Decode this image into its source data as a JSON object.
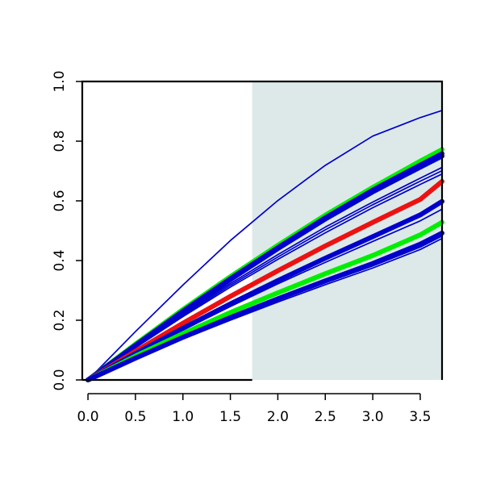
{
  "chart_data": {
    "type": "line",
    "title": "",
    "xlabel": "",
    "ylabel": "",
    "xlim": [
      -0.06,
      3.73
    ],
    "ylim": [
      0.0,
      1.0
    ],
    "x_ticks": [
      "0.0",
      "0.5",
      "1.0",
      "1.5",
      "2.0",
      "2.5",
      "3.0",
      "3.5"
    ],
    "y_ticks": [
      "0.0",
      "0.2",
      "0.4",
      "0.6",
      "0.8",
      "1.0"
    ],
    "shaded_region": {
      "x_start": 1.73,
      "x_end": 3.73,
      "color": "#dde9e9"
    },
    "grid": false,
    "legend": "none",
    "colors": {
      "blue": "#0000cc",
      "green": "#00ee00",
      "red": "#ee1111"
    },
    "series": [
      {
        "color": "blue",
        "weight": "thin",
        "points": [
          [
            0,
            0
          ],
          [
            0.5,
            0.162
          ],
          [
            1.0,
            0.318
          ],
          [
            1.5,
            0.467
          ],
          [
            2.0,
            0.601
          ],
          [
            2.5,
            0.719
          ],
          [
            3.0,
            0.817
          ],
          [
            3.5,
            0.879
          ],
          [
            3.73,
            0.903
          ]
        ]
      },
      {
        "color": "green",
        "weight": "thick",
        "points": [
          [
            0,
            0
          ],
          [
            0.5,
            0.12
          ],
          [
            1.0,
            0.236
          ],
          [
            1.5,
            0.346
          ],
          [
            2.0,
            0.451
          ],
          [
            2.5,
            0.552
          ],
          [
            3.0,
            0.645
          ],
          [
            3.5,
            0.733
          ],
          [
            3.73,
            0.772
          ]
        ]
      },
      {
        "color": "blue",
        "weight": "thick",
        "points": [
          [
            0,
            0
          ],
          [
            0.5,
            0.116
          ],
          [
            1.0,
            0.23
          ],
          [
            1.5,
            0.339
          ],
          [
            2.0,
            0.443
          ],
          [
            2.5,
            0.543
          ],
          [
            3.0,
            0.636
          ],
          [
            3.5,
            0.72
          ],
          [
            3.73,
            0.758
          ]
        ]
      },
      {
        "color": "blue",
        "weight": "thick",
        "points": [
          [
            0,
            0
          ],
          [
            0.5,
            0.115
          ],
          [
            1.0,
            0.228
          ],
          [
            1.5,
            0.336
          ],
          [
            2.0,
            0.44
          ],
          [
            2.5,
            0.539
          ],
          [
            3.0,
            0.63
          ],
          [
            3.5,
            0.713
          ],
          [
            3.73,
            0.75
          ]
        ]
      },
      {
        "color": "blue",
        "weight": "thin",
        "points": [
          [
            0,
            0
          ],
          [
            0.5,
            0.112
          ],
          [
            1.0,
            0.22
          ],
          [
            1.5,
            0.323
          ],
          [
            2.0,
            0.42
          ],
          [
            2.5,
            0.512
          ],
          [
            3.0,
            0.596
          ],
          [
            3.5,
            0.676
          ],
          [
            3.73,
            0.712
          ]
        ]
      },
      {
        "color": "blue",
        "weight": "thin",
        "points": [
          [
            0,
            0
          ],
          [
            0.5,
            0.11
          ],
          [
            1.0,
            0.216
          ],
          [
            1.5,
            0.317
          ],
          [
            2.0,
            0.412
          ],
          [
            2.5,
            0.503
          ],
          [
            3.0,
            0.587
          ],
          [
            3.5,
            0.666
          ],
          [
            3.73,
            0.701
          ]
        ]
      },
      {
        "color": "blue",
        "weight": "thin",
        "points": [
          [
            0,
            0
          ],
          [
            0.5,
            0.108
          ],
          [
            1.0,
            0.212
          ],
          [
            1.5,
            0.311
          ],
          [
            2.0,
            0.404
          ],
          [
            2.5,
            0.493
          ],
          [
            3.0,
            0.577
          ],
          [
            3.5,
            0.655
          ],
          [
            3.73,
            0.69
          ]
        ]
      },
      {
        "color": "red",
        "weight": "thick",
        "points": [
          [
            0,
            0
          ],
          [
            0.5,
            0.096
          ],
          [
            1.0,
            0.19
          ],
          [
            1.5,
            0.28
          ],
          [
            2.0,
            0.366
          ],
          [
            2.5,
            0.449
          ],
          [
            3.0,
            0.528
          ],
          [
            3.5,
            0.605
          ],
          [
            3.73,
            0.665
          ]
        ]
      },
      {
        "color": "blue",
        "weight": "thick",
        "points": [
          [
            0,
            0
          ],
          [
            0.5,
            0.088
          ],
          [
            1.0,
            0.173
          ],
          [
            1.5,
            0.255
          ],
          [
            2.0,
            0.333
          ],
          [
            2.5,
            0.408
          ],
          [
            3.0,
            0.48
          ],
          [
            3.5,
            0.553
          ],
          [
            3.73,
            0.598
          ]
        ]
      },
      {
        "color": "blue",
        "weight": "thin",
        "points": [
          [
            0,
            0
          ],
          [
            0.5,
            0.085
          ],
          [
            1.0,
            0.167
          ],
          [
            1.5,
            0.246
          ],
          [
            2.0,
            0.322
          ],
          [
            2.5,
            0.394
          ],
          [
            3.0,
            0.464
          ],
          [
            3.5,
            0.533
          ],
          [
            3.73,
            0.572
          ]
        ]
      },
      {
        "color": "green",
        "weight": "thick",
        "points": [
          [
            0,
            0
          ],
          [
            0.5,
            0.08
          ],
          [
            1.0,
            0.155
          ],
          [
            1.5,
            0.226
          ],
          [
            2.0,
            0.292
          ],
          [
            2.5,
            0.356
          ],
          [
            3.0,
            0.417
          ],
          [
            3.5,
            0.486
          ],
          [
            3.73,
            0.528
          ]
        ]
      },
      {
        "color": "blue",
        "weight": "thick",
        "points": [
          [
            0,
            0
          ],
          [
            0.5,
            0.073
          ],
          [
            1.0,
            0.143
          ],
          [
            1.5,
            0.209
          ],
          [
            2.0,
            0.272
          ],
          [
            2.5,
            0.332
          ],
          [
            3.0,
            0.39
          ],
          [
            3.5,
            0.455
          ],
          [
            3.73,
            0.492
          ]
        ]
      },
      {
        "color": "blue",
        "weight": "thin",
        "points": [
          [
            0,
            0
          ],
          [
            0.5,
            0.071
          ],
          [
            1.0,
            0.139
          ],
          [
            1.5,
            0.204
          ],
          [
            2.0,
            0.266
          ],
          [
            2.5,
            0.325
          ],
          [
            3.0,
            0.382
          ],
          [
            3.5,
            0.445
          ],
          [
            3.73,
            0.482
          ]
        ]
      },
      {
        "color": "blue",
        "weight": "thin",
        "points": [
          [
            0,
            0
          ],
          [
            0.5,
            0.07
          ],
          [
            1.0,
            0.137
          ],
          [
            1.5,
            0.2
          ],
          [
            2.0,
            0.261
          ],
          [
            2.5,
            0.319
          ],
          [
            3.0,
            0.375
          ],
          [
            3.5,
            0.437
          ],
          [
            3.73,
            0.474
          ]
        ]
      }
    ]
  }
}
